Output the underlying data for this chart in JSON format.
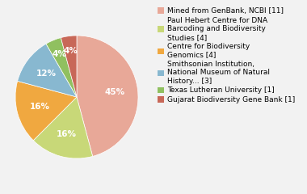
{
  "labels": [
    "Mined from GenBank, NCBI [11]",
    "Paul Hebert Centre for DNA\nBarcoding and Biodiversity\nStudies [4]",
    "Centre for Biodiversity\nGenomics [4]",
    "Smithsonian Institution,\nNational Museum of Natural\nHistory... [3]",
    "Texas Lutheran University [1]",
    "Gujarat Biodiversity Gene Bank [1]"
  ],
  "values": [
    11,
    4,
    4,
    3,
    1,
    1
  ],
  "colors": [
    "#e8a898",
    "#c8d878",
    "#f0a840",
    "#88b8d0",
    "#90c060",
    "#c86858"
  ],
  "background_color": "#f2f2f2",
  "legend_fontsize": 6.5,
  "pct_fontsize": 7.5,
  "startangle": 90
}
